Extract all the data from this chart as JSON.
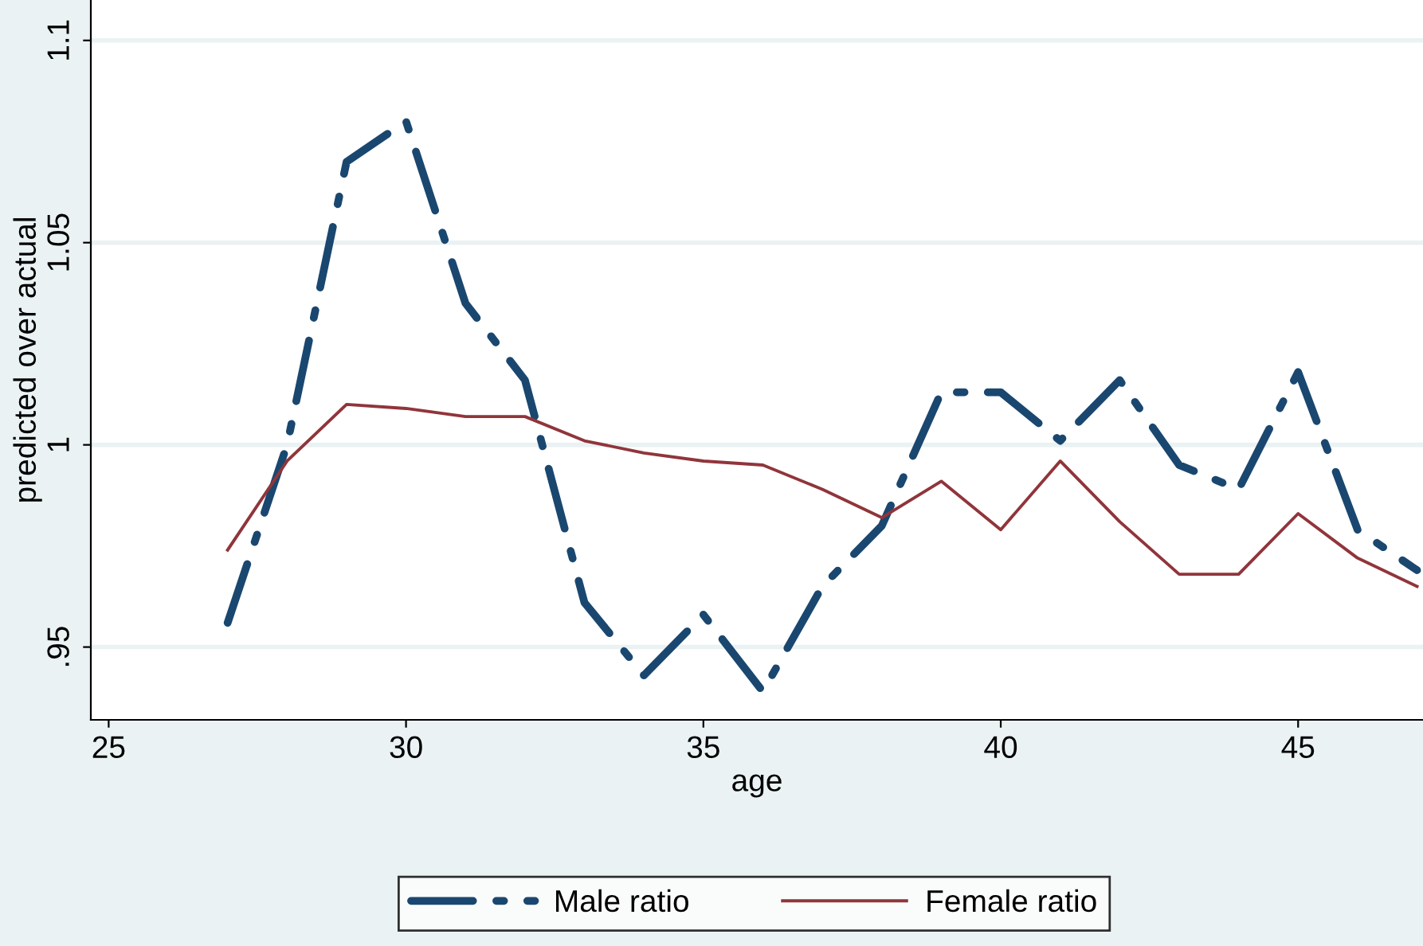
{
  "chart_data": {
    "type": "line",
    "xlabel": "age",
    "ylabel": "predicted over actual",
    "x": [
      27,
      28,
      29,
      30,
      31,
      32,
      33,
      34,
      35,
      36,
      37,
      38,
      39,
      40,
      41,
      42,
      43,
      44,
      45,
      46,
      47
    ],
    "series": [
      {
        "name": "Male ratio",
        "color": "#1a476f",
        "line_style": "dashdot",
        "values": [
          0.956,
          1.0,
          1.07,
          1.08,
          1.035,
          1.016,
          0.961,
          0.943,
          0.958,
          0.939,
          0.965,
          0.98,
          1.013,
          1.013,
          1.001,
          1.016,
          0.995,
          0.989,
          1.018,
          0.979,
          0.969
        ]
      },
      {
        "name": "Female ratio",
        "color": "#90353b",
        "line_style": "solid",
        "values": [
          0.974,
          0.996,
          1.01,
          1.009,
          1.007,
          1.007,
          1.001,
          0.998,
          0.996,
          0.995,
          0.989,
          0.982,
          0.991,
          0.979,
          0.996,
          0.981,
          0.968,
          0.968,
          0.983,
          0.972,
          0.965
        ]
      }
    ],
    "xlim": [
      24.7,
      47.1
    ],
    "xticks": [
      25,
      30,
      35,
      40,
      45
    ],
    "ylim": [
      0.932,
      1.11
    ],
    "yticks": [
      {
        "value": 0.95,
        "label": ".95"
      },
      1,
      {
        "value": 1.05,
        "label": "1.05"
      },
      {
        "value": 1.1,
        "label": "1.1"
      }
    ],
    "grid": "y",
    "legend": "bottom"
  }
}
